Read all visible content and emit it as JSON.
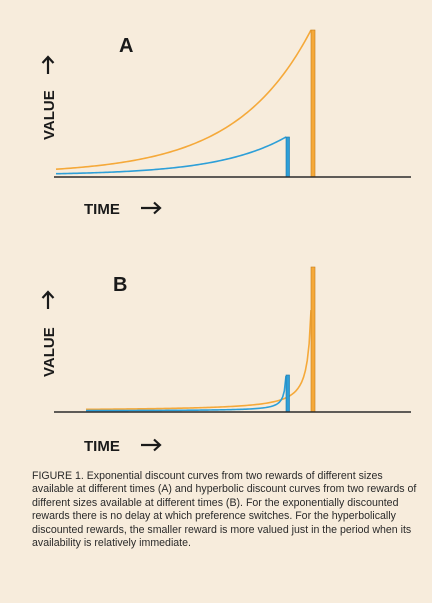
{
  "colors": {
    "background": "#f7ecdc",
    "large_reward": "#f5a93a",
    "small_reward": "#2d9fd8",
    "axis": "#2b2b2b",
    "text": "#1a1a1a"
  },
  "panels": [
    {
      "label": "A",
      "ylabel": "VALUE",
      "xlabel": "TIME",
      "arrow_icon": "right-arrow-icon"
    },
    {
      "label": "B",
      "ylabel": "VALUE",
      "xlabel": "TIME",
      "arrow_icon": "right-arrow-icon"
    }
  ],
  "chart_data": [
    {
      "type": "line",
      "panel": "A",
      "curve": "exponential",
      "series": [
        {
          "reward": "large",
          "color": "#f5a93a",
          "reward_time": 0.92,
          "reward_height": 1.0
        },
        {
          "reward": "small",
          "color": "#2d9fd8",
          "reward_time": 0.83,
          "reward_height": 0.26
        }
      ]
    },
    {
      "type": "line",
      "panel": "B",
      "curve": "hyperbolic",
      "series": [
        {
          "reward": "large",
          "color": "#f5a93a",
          "reward_time": 0.92,
          "reward_height": 1.0
        },
        {
          "reward": "small",
          "color": "#2d9fd8",
          "reward_time": 0.83,
          "reward_height": 0.26
        }
      ]
    }
  ],
  "caption": "FIGURE 1.  Exponential discount curves from two rewards of different sizes available at different times (A) and hyperbolic discount curves from two rewards of different sizes available at different times (B). For the exponentially discounted rewards there is no delay at which preference switches.  For the hyperbolically discounted rewards, the smaller reward is more valued just in the period when its availability is relatively immediate."
}
